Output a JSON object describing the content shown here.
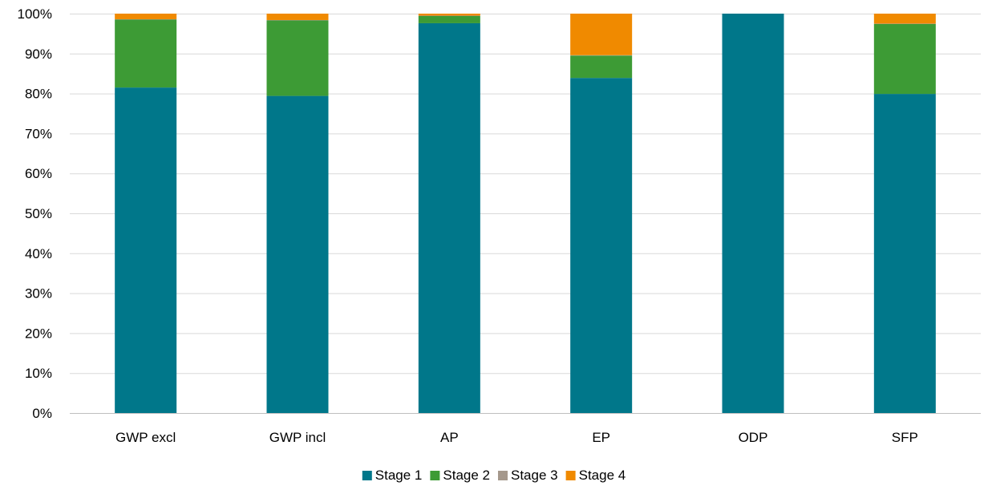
{
  "chart_data": {
    "type": "bar",
    "stacked": true,
    "percent_stacked": true,
    "title": "",
    "xlabel": "",
    "ylabel": "",
    "ylim": [
      0,
      100
    ],
    "y_tick_labels": [
      "0%",
      "10%",
      "20%",
      "30%",
      "40%",
      "50%",
      "60%",
      "70%",
      "80%",
      "90%",
      "100%"
    ],
    "y_ticks": [
      0,
      10,
      20,
      30,
      40,
      50,
      60,
      70,
      80,
      90,
      100
    ],
    "grid": "horizontal",
    "legend_position": "bottom",
    "categories": [
      "GWP excl",
      "GWP incl",
      "AP",
      "EP",
      "ODP",
      "SFP"
    ],
    "series": [
      {
        "name": "Stage 1",
        "color": "#00778a",
        "values": [
          81.5,
          79.4,
          97.6,
          83.9,
          100,
          79.9
        ]
      },
      {
        "name": "Stage 2",
        "color": "#3d9b35",
        "values": [
          17.0,
          18.9,
          1.8,
          5.6,
          0,
          17.5
        ]
      },
      {
        "name": "Stage 3",
        "color": "#a5988c",
        "values": [
          0.1,
          0.1,
          0.1,
          0.1,
          0,
          0.1
        ]
      },
      {
        "name": "Stage 4",
        "color": "#f08a00",
        "values": [
          1.4,
          1.6,
          0.5,
          10.4,
          0,
          2.5
        ]
      }
    ]
  }
}
